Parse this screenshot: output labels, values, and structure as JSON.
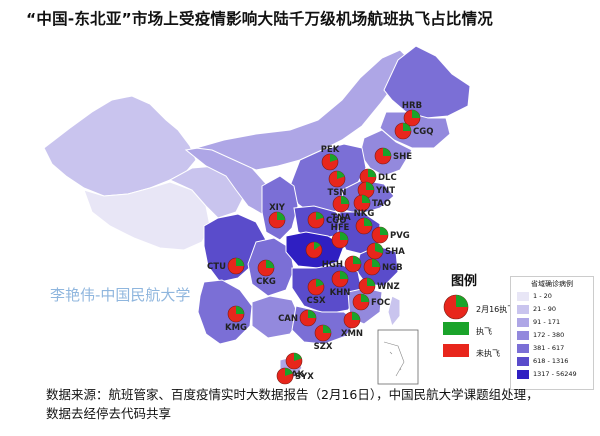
{
  "title": "“中国-东北亚”市场上受疫情影响大陆千万级机场航班执飞占比情况",
  "watermark": "李艳伟-中国民航大学",
  "footer": {
    "line1": "数据来源：航班管家、百度疫情实时大数据报告（2月16日），中国民航大学课题组处理，",
    "line2": "数据去经停去代码共享"
  },
  "legend": {
    "title": "图例",
    "pie_label": "2月16执飞情况",
    "flown_label": "执飞",
    "not_flown_label": "未执飞",
    "flown_color": "#1aa32a",
    "not_flown_color": "#e8261c"
  },
  "scale": {
    "title": "省域确诊病例",
    "classes": [
      {
        "label": "1 - 20",
        "color": "#e8e6f6"
      },
      {
        "label": "21 - 90",
        "color": "#c9c4ee"
      },
      {
        "label": "91 - 171",
        "color": "#aea6e6"
      },
      {
        "label": "172 - 380",
        "color": "#9389dd"
      },
      {
        "label": "381 - 617",
        "color": "#7b6fd6"
      },
      {
        "label": "618 - 1316",
        "color": "#5a4ccb"
      },
      {
        "label": "1317 - 56249",
        "color": "#2f1fc2"
      }
    ]
  },
  "airports": [
    {
      "code": "HRB",
      "flown_share": 0.25
    },
    {
      "code": "CGQ",
      "flown_share": 0.25
    },
    {
      "code": "SHE",
      "flown_share": 0.25
    },
    {
      "code": "PEK",
      "flown_share": 0.2
    },
    {
      "code": "DLC",
      "flown_share": 0.25
    },
    {
      "code": "TSN",
      "flown_share": 0.2
    },
    {
      "code": "YNT",
      "flown_share": 0.25
    },
    {
      "code": "TAO",
      "flown_share": 0.25
    },
    {
      "code": "XIY",
      "flown_share": 0.25
    },
    {
      "code": "CGO",
      "flown_share": 0.2
    },
    {
      "code": "TNA",
      "flown_share": 0.25
    },
    {
      "code": "NKG",
      "flown_share": 0.25
    },
    {
      "code": "HFE",
      "flown_share": 0.25
    },
    {
      "code": "PVG",
      "flown_share": 0.25
    },
    {
      "code": "SHA",
      "flown_share": 0.3
    },
    {
      "code": "CTU",
      "flown_share": 0.25
    },
    {
      "code": "CKG",
      "flown_share": 0.25
    },
    {
      "code": "HGH",
      "flown_share": 0.25
    },
    {
      "code": "NGB",
      "flown_share": 0.25
    },
    {
      "code": "KHN",
      "flown_share": 0.25
    },
    {
      "code": "WNZ",
      "flown_share": 0.25
    },
    {
      "code": "CSX",
      "flown_share": 0.2
    },
    {
      "code": "FOC",
      "flown_share": 0.25
    },
    {
      "code": "KMG",
      "flown_share": 0.25
    },
    {
      "code": "CAN",
      "flown_share": 0.25
    },
    {
      "code": "XMN",
      "flown_share": 0.25
    },
    {
      "code": "SZX",
      "flown_share": 0.25
    },
    {
      "code": "HAK",
      "flown_share": 0.2
    },
    {
      "code": "SYX",
      "flown_share": 0.2
    }
  ]
}
